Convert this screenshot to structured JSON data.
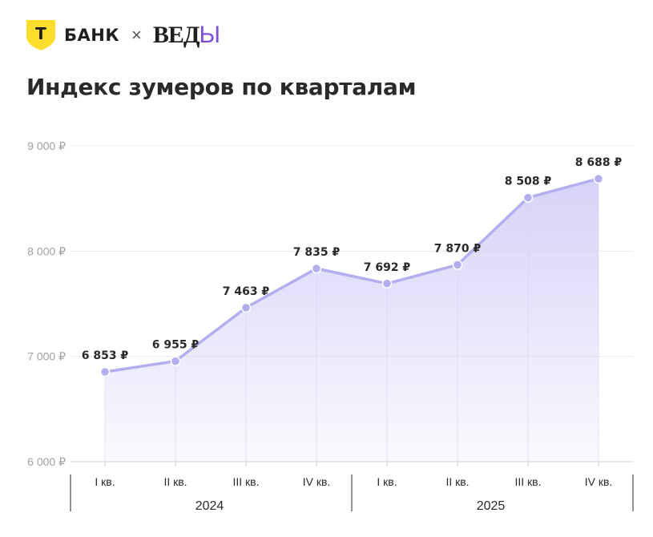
{
  "brand": {
    "bank_name": "БАНК",
    "shield_letter": "Т",
    "separator": "×",
    "partner_main": "ВЕД",
    "partner_accent": "Ы",
    "shield_color": "#ffdd2d",
    "accent_color": "#7d4fd6"
  },
  "chart_data": {
    "type": "area",
    "title": "Индекс зумеров по кварталам",
    "categories": [
      "I кв.",
      "II кв.",
      "III кв.",
      "IV кв.",
      "I кв.",
      "II кв.",
      "III кв.",
      "IV кв."
    ],
    "groups": [
      {
        "label": "2024",
        "count": 4
      },
      {
        "label": "2025",
        "count": 4
      }
    ],
    "series": [
      {
        "values": [
          6853,
          6955,
          7463,
          7835,
          7692,
          7870,
          8508,
          8688
        ]
      }
    ],
    "data_labels": [
      "6 853 ₽",
      "6 955 ₽",
      "7 463 ₽",
      "7 835 ₽",
      "7 692 ₽",
      "7 870 ₽",
      "8 508 ₽",
      "8 688 ₽"
    ],
    "y_ticks": [
      6000,
      7000,
      8000,
      9000
    ],
    "y_tick_labels": [
      "6 000 ₽",
      "7 000 ₽",
      "8 000 ₽",
      "9 000 ₽"
    ],
    "ylim": [
      6000,
      9000
    ],
    "grid": true,
    "line_color": "#b3aeee",
    "fill_color": "#d4d0f6"
  }
}
